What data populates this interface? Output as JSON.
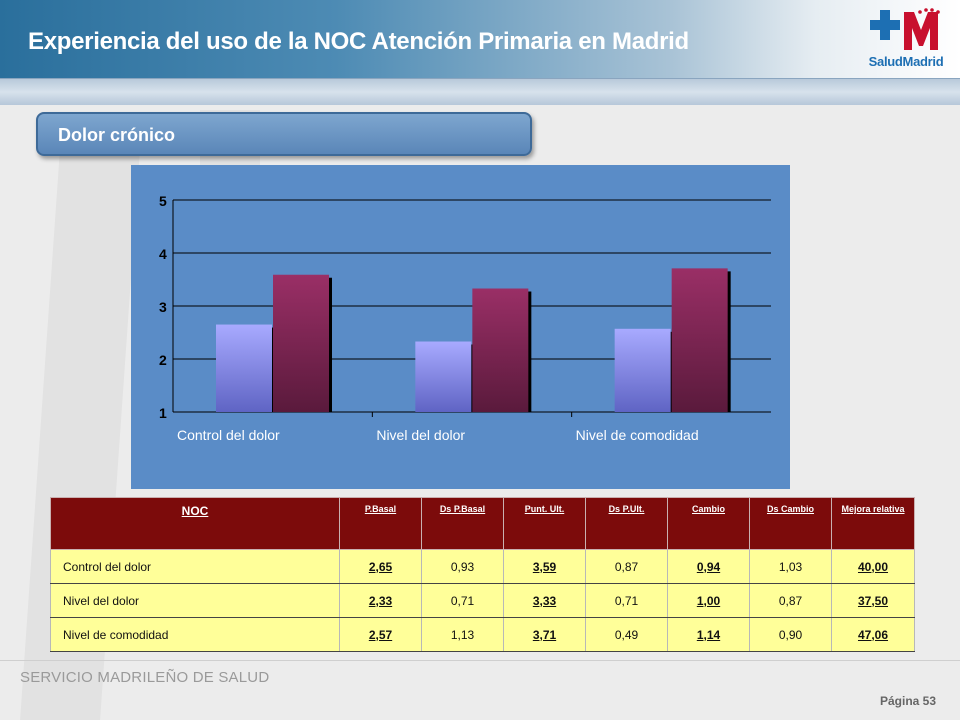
{
  "header": {
    "title": "Experiencia del uso de la NOC Atención Primaria en Madrid",
    "logo_text": "SaludMadrid"
  },
  "section": {
    "title": "Dolor crónico"
  },
  "colors": {
    "series_basal": "#9a9cf2",
    "series_ult": "#8c2c5c",
    "chart_bg": "#5a8cc7",
    "table_header": "#7c0b0b",
    "table_row": "#ffff99"
  },
  "chart_data": {
    "type": "bar",
    "categories": [
      "Control del dolor",
      "Nivel del dolor",
      "Nivel de comodidad"
    ],
    "series": [
      {
        "values": [
          2.65,
          2.33,
          2.57
        ]
      },
      {
        "values": [
          3.59,
          3.33,
          3.71
        ]
      }
    ],
    "y_ticks": [
      "1",
      "2",
      "3",
      "4",
      "5"
    ],
    "ylim": [
      1,
      5
    ],
    "grid": true,
    "legend": "none"
  },
  "table": {
    "headers": [
      "NOC",
      "P.Basal",
      "Ds P.Basal",
      "Punt. Ult.",
      "Ds P.Ult.",
      "Cambio",
      "Ds Cambio",
      "Mejora relativa"
    ],
    "rows": [
      [
        "Control del dolor",
        "2,65",
        "0,93",
        "3,59",
        "0,87",
        "0,94",
        "1,03",
        "40,00"
      ],
      [
        "Nivel del dolor",
        "2,33",
        "0,71",
        "3,33",
        "0,71",
        "1,00",
        "0,87",
        "37,50"
      ],
      [
        "Nivel de comodidad",
        "2,57",
        "1,13",
        "3,71",
        "0,49",
        "1,14",
        "0,90",
        "47,06"
      ]
    ]
  },
  "footer": {
    "org": "SERVICIO MADRILEÑO DE SALUD",
    "page": "Página 53"
  }
}
